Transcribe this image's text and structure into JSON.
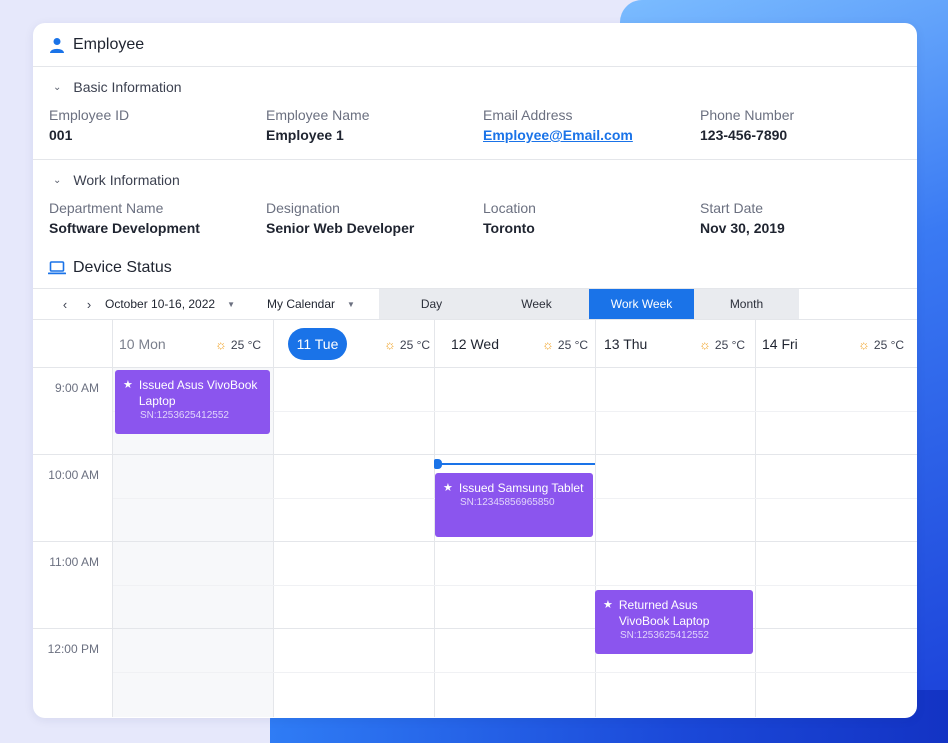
{
  "employee": {
    "title": "Employee",
    "basic": {
      "heading": "Basic Information",
      "fields": [
        {
          "label": "Employee ID",
          "value": "001"
        },
        {
          "label": "Employee Name",
          "value": "Employee 1"
        },
        {
          "label": "Email Address",
          "value": "Employee@Email.com"
        },
        {
          "label": "Phone Number",
          "value": "123-456-7890"
        }
      ]
    },
    "work": {
      "heading": "Work Information",
      "fields": [
        {
          "label": "Department Name",
          "value": "Software Development"
        },
        {
          "label": "Designation",
          "value": "Senior Web Developer"
        },
        {
          "label": "Location",
          "value": "Toronto"
        },
        {
          "label": "Start Date",
          "value": "Nov 30, 2019"
        }
      ]
    }
  },
  "device": {
    "title": "Device Status",
    "toolbar": {
      "date_range": "October 10-16, 2022",
      "calendar": "My Calendar",
      "views": [
        "Day",
        "Week",
        "Work Week",
        "Month"
      ],
      "active_view": "Work Week"
    },
    "days": [
      {
        "label": "10 Mon",
        "temp": "25 °C"
      },
      {
        "label": "11 Tue",
        "temp": "25 °C"
      },
      {
        "label": "12 Wed",
        "temp": "25 °C"
      },
      {
        "label": "13 Thu",
        "temp": "25 °C"
      },
      {
        "label": "14 Fri",
        "temp": "25 °C"
      }
    ],
    "times": [
      "9:00 AM",
      "10:00 AM",
      "11:00 AM",
      "12:00 PM"
    ],
    "events": [
      {
        "title": "Issued Asus VivoBook Laptop",
        "sn": "SN:1253625412552"
      },
      {
        "title": "Issued Samsung Tablet",
        "sn": "SN:12345856965850"
      },
      {
        "title": "Returned Asus VivoBook Laptop",
        "sn": "SN:1253625412552"
      }
    ]
  },
  "colors": {
    "accent": "#1a73e8",
    "event": "#8b55ee"
  }
}
